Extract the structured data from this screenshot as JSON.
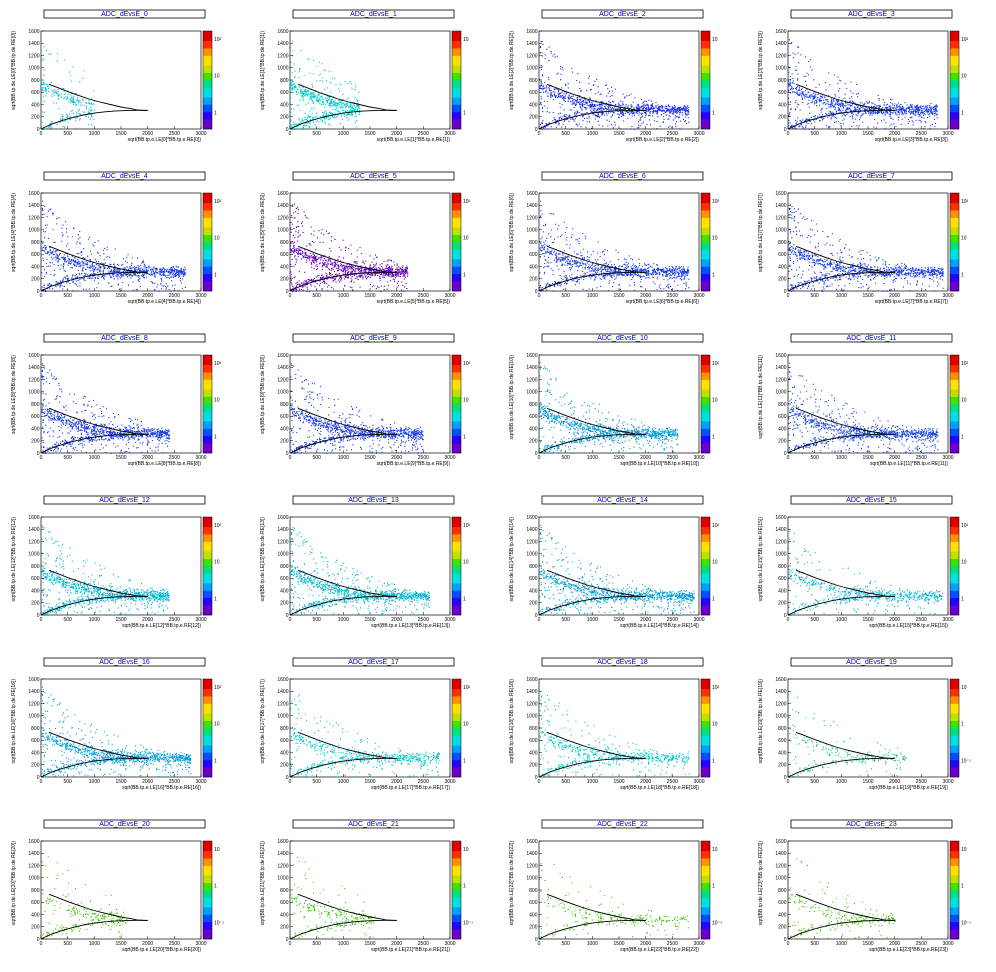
{
  "figure": {
    "rows": 6,
    "cols": 4
  },
  "colors": {
    "background": "#ffffff",
    "title_text": "#0000cc",
    "curve": "#000000",
    "palette": [
      "#6a00c8",
      "#2a00ff",
      "#0050ff",
      "#00a0ff",
      "#00e0e0",
      "#00e080",
      "#40e000",
      "#c0e000",
      "#ffe000",
      "#ff9000",
      "#ff3000",
      "#e00000"
    ]
  },
  "chart_data": [
    {
      "type": "heatmap",
      "title": "ADC_dEvsE_0",
      "xlabel": "sqrt(BB.tp.e.LE[0]*BB.tp.e.RE[0])",
      "ylabel": "sqrt(BB.tp.de.LE[0]*BB.tp.de.RE[0])",
      "xlim": [
        0,
        3000
      ],
      "ylim": [
        0,
        1600
      ],
      "xticks": [
        0,
        500,
        1000,
        1500,
        2000,
        2500,
        3000
      ],
      "yticks": [
        0,
        200,
        400,
        600,
        800,
        1000,
        1200,
        1400,
        1600
      ],
      "zscale": "log",
      "zticks": [
        "1",
        "10",
        "10²"
      ],
      "dominant_color": "#00c8e8",
      "density": "sparse",
      "extent_x": [
        0,
        1000
      ]
    },
    {
      "type": "heatmap",
      "title": "ADC_dEvsE_1",
      "xlabel": "sqrt(BB.tp.e.LE[1]*BB.tp.e.RE[1])",
      "ylabel": "sqrt(BB.tp.de.LE[1]*BB.tp.de.RE[1])",
      "xlim": [
        0,
        3000
      ],
      "ylim": [
        0,
        1600
      ],
      "xticks": [
        0,
        500,
        1000,
        1500,
        2000,
        2500,
        3000
      ],
      "yticks": [
        0,
        200,
        400,
        600,
        800,
        1000,
        1200,
        1400,
        1600
      ],
      "zscale": "log",
      "zticks": [
        "1",
        "10"
      ],
      "dominant_color": "#00e0e0",
      "density": "medium",
      "extent_x": [
        0,
        1300
      ]
    },
    {
      "type": "heatmap",
      "title": "ADC_dEvsE_2",
      "xlabel": "sqrt(BB.tp.e.LE[2]*BB.tp.e.RE[2])",
      "ylabel": "sqrt(BB.tp.de.LE[2]*BB.tp.de.RE[2])",
      "xlim": [
        0,
        3000
      ],
      "ylim": [
        0,
        1600
      ],
      "xticks": [
        0,
        500,
        1000,
        1500,
        2000,
        2500,
        3000
      ],
      "yticks": [
        0,
        200,
        400,
        600,
        800,
        1000,
        1200,
        1400,
        1600
      ],
      "zscale": "log",
      "zticks": [
        "1",
        "10"
      ],
      "dominant_color": "#1a30ff",
      "density": "dense",
      "extent_x": [
        0,
        2800
      ]
    },
    {
      "type": "heatmap",
      "title": "ADC_dEvsE_3",
      "xlabel": "sqrt(BB.tp.e.LE[3]*BB.tp.e.RE[3])",
      "ylabel": "sqrt(BB.tp.de.LE[3]*BB.tp.de.RE[3])",
      "xlim": [
        0,
        3000
      ],
      "ylim": [
        0,
        1600
      ],
      "xticks": [
        0,
        500,
        1000,
        1500,
        2000,
        2500,
        3000
      ],
      "yticks": [
        0,
        200,
        400,
        600,
        800,
        1000,
        1200,
        1400,
        1600
      ],
      "zscale": "log",
      "zticks": [
        "1",
        "10",
        "10²"
      ],
      "dominant_color": "#1a40ff",
      "density": "dense",
      "extent_x": [
        0,
        2800
      ]
    },
    {
      "type": "heatmap",
      "title": "ADC_dEvsE_4",
      "xlabel": "sqrt(BB.tp.e.LE[4]*BB.tp.e.RE[4])",
      "ylabel": "sqrt(BB.tp.de.LE[4]*BB.tp.de.RE[4])",
      "xlim": [
        0,
        3000
      ],
      "ylim": [
        0,
        1600
      ],
      "xticks": [
        0,
        500,
        1000,
        1500,
        2000,
        2500,
        3000
      ],
      "yticks": [
        0,
        200,
        400,
        600,
        800,
        1000,
        1200,
        1400,
        1600
      ],
      "zscale": "log",
      "zticks": [
        "1",
        "10",
        "10²"
      ],
      "dominant_color": "#1a40ff",
      "density": "dense",
      "extent_x": [
        0,
        2700
      ]
    },
    {
      "type": "heatmap",
      "title": "ADC_dEvsE_5",
      "xlabel": "sqrt(BB.tp.e.LE[5]*BB.tp.e.RE[5])",
      "ylabel": "sqrt(BB.tp.de.LE[5]*BB.tp.de.RE[5])",
      "xlim": [
        0,
        3000
      ],
      "ylim": [
        0,
        1600
      ],
      "xticks": [
        0,
        500,
        1000,
        1500,
        2000,
        2500,
        3000
      ],
      "yticks": [
        0,
        200,
        400,
        600,
        800,
        1000,
        1200,
        1400,
        1600
      ],
      "zscale": "log",
      "zticks": [
        "1",
        "10",
        "10²"
      ],
      "dominant_color": "#6a00d0",
      "density": "dense",
      "extent_x": [
        0,
        2200
      ]
    },
    {
      "type": "heatmap",
      "title": "ADC_dEvsE_6",
      "xlabel": "sqrt(BB.tp.e.LE[6]*BB.tp.e.RE[6])",
      "ylabel": "sqrt(BB.tp.de.LE[6]*BB.tp.de.RE[6])",
      "xlim": [
        0,
        3000
      ],
      "ylim": [
        0,
        1600
      ],
      "xticks": [
        0,
        500,
        1000,
        1500,
        2000,
        2500,
        3000
      ],
      "yticks": [
        0,
        200,
        400,
        600,
        800,
        1000,
        1200,
        1400,
        1600
      ],
      "zscale": "log",
      "zticks": [
        "1",
        "10",
        "10²"
      ],
      "dominant_color": "#1a40ff",
      "density": "dense",
      "extent_x": [
        0,
        2800
      ]
    },
    {
      "type": "heatmap",
      "title": "ADC_dEvsE_7",
      "xlabel": "sqrt(BB.tp.e.LE[7]*BB.tp.e.RE[7])",
      "ylabel": "sqrt(BB.tp.de.LE[7]*BB.tp.de.RE[7])",
      "xlim": [
        0,
        3000
      ],
      "ylim": [
        0,
        1600
      ],
      "xticks": [
        0,
        500,
        1000,
        1500,
        2000,
        2500,
        3000
      ],
      "yticks": [
        0,
        200,
        400,
        600,
        800,
        1000,
        1200,
        1400,
        1600
      ],
      "zscale": "log",
      "zticks": [
        "1",
        "10",
        "10²"
      ],
      "dominant_color": "#1a40ff",
      "density": "dense",
      "extent_x": [
        0,
        2900
      ]
    },
    {
      "type": "heatmap",
      "title": "ADC_dEvsE_8",
      "xlabel": "sqrt(BB.tp.e.LE[8]*BB.tp.e.RE[8])",
      "ylabel": "sqrt(BB.tp.de.LE[8]*BB.tp.de.RE[8])",
      "xlim": [
        0,
        3000
      ],
      "ylim": [
        0,
        1600
      ],
      "xticks": [
        0,
        500,
        1000,
        1500,
        2000,
        2500,
        3000
      ],
      "yticks": [
        0,
        200,
        400,
        600,
        800,
        1000,
        1200,
        1400,
        1600
      ],
      "zscale": "log",
      "zticks": [
        "1",
        "10",
        "10²"
      ],
      "dominant_color": "#1a40ff",
      "density": "dense",
      "extent_x": [
        0,
        2400
      ]
    },
    {
      "type": "heatmap",
      "title": "ADC_dEvsE_9",
      "xlabel": "sqrt(BB.tp.e.LE[9]*BB.tp.e.RE[9])",
      "ylabel": "sqrt(BB.tp.de.LE[9]*BB.tp.de.RE[9])",
      "xlim": [
        0,
        3000
      ],
      "ylim": [
        0,
        1600
      ],
      "xticks": [
        0,
        500,
        1000,
        1500,
        2000,
        2500,
        3000
      ],
      "yticks": [
        0,
        200,
        400,
        600,
        800,
        1000,
        1200,
        1400,
        1600
      ],
      "zscale": "log",
      "zticks": [
        "1",
        "10",
        "10²"
      ],
      "dominant_color": "#1a40ff",
      "density": "dense",
      "extent_x": [
        0,
        2500
      ]
    },
    {
      "type": "heatmap",
      "title": "ADC_dEvsE_10",
      "xlabel": "sqrt(BB.tp.e.LE[10]*BB.tp.e.RE[10])",
      "ylabel": "sqrt(BB.tp.de.LE[10]*BB.tp.de.RE[10])",
      "xlim": [
        0,
        3000
      ],
      "ylim": [
        0,
        1600
      ],
      "xticks": [
        0,
        500,
        1000,
        1500,
        2000,
        2500,
        3000
      ],
      "yticks": [
        0,
        200,
        400,
        600,
        800,
        1000,
        1200,
        1400,
        1600
      ],
      "zscale": "log",
      "zticks": [
        "1",
        "10",
        "10²"
      ],
      "dominant_color": "#00a8f0",
      "density": "dense",
      "extent_x": [
        0,
        2600
      ]
    },
    {
      "type": "heatmap",
      "title": "ADC_dEvsE_11",
      "xlabel": "sqrt(BB.tp.e.LE[11]*BB.tp.e.RE[11])",
      "ylabel": "sqrt(BB.tp.de.LE[11]*BB.tp.de.RE[11])",
      "xlim": [
        0,
        3000
      ],
      "ylim": [
        0,
        1600
      ],
      "xticks": [
        0,
        500,
        1000,
        1500,
        2000,
        2500,
        3000
      ],
      "yticks": [
        0,
        200,
        400,
        600,
        800,
        1000,
        1200,
        1400,
        1600
      ],
      "zscale": "log",
      "zticks": [
        "1",
        "10",
        "10²"
      ],
      "dominant_color": "#1a50ff",
      "density": "dense",
      "extent_x": [
        0,
        2800
      ]
    },
    {
      "type": "heatmap",
      "title": "ADC_dEvsE_12",
      "xlabel": "sqrt(BB.tp.e.LE[12]*BB.tp.e.RE[12])",
      "ylabel": "sqrt(BB.tp.de.LE[12]*BB.tp.de.RE[12])",
      "xlim": [
        0,
        3000
      ],
      "ylim": [
        0,
        1600
      ],
      "xticks": [
        0,
        500,
        1000,
        1500,
        2000,
        2500,
        3000
      ],
      "yticks": [
        0,
        200,
        400,
        600,
        800,
        1000,
        1200,
        1400,
        1600
      ],
      "zscale": "log",
      "zticks": [
        "1",
        "10",
        "10²"
      ],
      "dominant_color": "#00c8e8",
      "density": "dense",
      "extent_x": [
        0,
        2400
      ]
    },
    {
      "type": "heatmap",
      "title": "ADC_dEvsE_13",
      "xlabel": "sqrt(BB.tp.e.LE[13]*BB.tp.e.RE[13])",
      "ylabel": "sqrt(BB.tp.de.LE[13]*BB.tp.de.RE[13])",
      "xlim": [
        0,
        3000
      ],
      "ylim": [
        0,
        1600
      ],
      "xticks": [
        0,
        500,
        1000,
        1500,
        2000,
        2500,
        3000
      ],
      "yticks": [
        0,
        200,
        400,
        600,
        800,
        1000,
        1200,
        1400,
        1600
      ],
      "zscale": "log",
      "zticks": [
        "1",
        "10",
        "10²"
      ],
      "dominant_color": "#00c8e8",
      "density": "dense",
      "extent_x": [
        0,
        2600
      ]
    },
    {
      "type": "heatmap",
      "title": "ADC_dEvsE_14",
      "xlabel": "sqrt(BB.tp.e.LE[14]*BB.tp.e.RE[14])",
      "ylabel": "sqrt(BB.tp.de.LE[14]*BB.tp.de.RE[14])",
      "xlim": [
        0,
        3000
      ],
      "ylim": [
        0,
        1600
      ],
      "xticks": [
        0,
        500,
        1000,
        1500,
        2000,
        2500,
        3000
      ],
      "yticks": [
        0,
        200,
        400,
        600,
        800,
        1000,
        1200,
        1400,
        1600
      ],
      "zscale": "log",
      "zticks": [
        "1",
        "10",
        "10²"
      ],
      "dominant_color": "#00b0f0",
      "density": "dense",
      "extent_x": [
        0,
        2900
      ]
    },
    {
      "type": "heatmap",
      "title": "ADC_dEvsE_15",
      "xlabel": "sqrt(BB.tp.e.LE[15]*BB.tp.e.RE[15])",
      "ylabel": "sqrt(BB.tp.de.LE[15]*BB.tp.de.RE[15])",
      "xlim": [
        0,
        3000
      ],
      "ylim": [
        0,
        1600
      ],
      "xticks": [
        0,
        500,
        1000,
        1500,
        2000,
        2500,
        3000
      ],
      "yticks": [
        0,
        200,
        400,
        600,
        800,
        1000,
        1200,
        1400,
        1600
      ],
      "zscale": "log",
      "zticks": [
        "1",
        "10",
        "10²"
      ],
      "dominant_color": "#00c8e8",
      "density": "medium",
      "extent_x": [
        0,
        2900
      ]
    },
    {
      "type": "heatmap",
      "title": "ADC_dEvsE_16",
      "xlabel": "sqrt(BB.tp.e.LE[16]*BB.tp.e.RE[16])",
      "ylabel": "sqrt(BB.tp.de.LE[16]*BB.tp.de.RE[16])",
      "xlim": [
        0,
        3000
      ],
      "ylim": [
        0,
        1600
      ],
      "xticks": [
        0,
        500,
        1000,
        1500,
        2000,
        2500,
        3000
      ],
      "yticks": [
        0,
        200,
        400,
        600,
        800,
        1000,
        1200,
        1400,
        1600
      ],
      "zscale": "log",
      "zticks": [
        "1",
        "10",
        "10²"
      ],
      "dominant_color": "#00b0f0",
      "density": "dense",
      "extent_x": [
        0,
        2800
      ]
    },
    {
      "type": "heatmap",
      "title": "ADC_dEvsE_17",
      "xlabel": "sqrt(BB.tp.e.LE[17]*BB.tp.e.RE[17])",
      "ylabel": "sqrt(BB.tp.de.LE[17]*BB.tp.de.RE[17])",
      "xlim": [
        0,
        3000
      ],
      "ylim": [
        0,
        1600
      ],
      "xticks": [
        0,
        500,
        1000,
        1500,
        2000,
        2500,
        3000
      ],
      "yticks": [
        0,
        200,
        400,
        600,
        800,
        1000,
        1200,
        1400,
        1600
      ],
      "zscale": "log",
      "zticks": [
        "1",
        "10",
        "10²"
      ],
      "dominant_color": "#00e0e0",
      "density": "medium",
      "extent_x": [
        0,
        2800
      ]
    },
    {
      "type": "heatmap",
      "title": "ADC_dEvsE_18",
      "xlabel": "sqrt(BB.tp.e.LE[18]*BB.tp.e.RE[18])",
      "ylabel": "sqrt(BB.tp.de.LE[18]*BB.tp.de.RE[18])",
      "xlim": [
        0,
        3000
      ],
      "ylim": [
        0,
        1600
      ],
      "xticks": [
        0,
        500,
        1000,
        1500,
        2000,
        2500,
        3000
      ],
      "yticks": [
        0,
        200,
        400,
        600,
        800,
        1000,
        1200,
        1400,
        1600
      ],
      "zscale": "log",
      "zticks": [
        "1",
        "10",
        "10²"
      ],
      "dominant_color": "#00e0e0",
      "density": "medium",
      "extent_x": [
        0,
        2800
      ]
    },
    {
      "type": "heatmap",
      "title": "ADC_dEvsE_19",
      "xlabel": "sqrt(BB.tp.e.LE[19]*BB.tp.e.RE[19])",
      "ylabel": "sqrt(BB.tp.de.LE[19]*BB.tp.de.RE[19])",
      "xlim": [
        0,
        3000
      ],
      "ylim": [
        0,
        1600
      ],
      "xticks": [
        0,
        500,
        1000,
        1500,
        2000,
        2500,
        3000
      ],
      "yticks": [
        0,
        200,
        400,
        600,
        800,
        1000,
        1200,
        1400,
        1600
      ],
      "zscale": "log",
      "zticks": [
        "10⁻¹",
        "1",
        "10"
      ],
      "dominant_color": "#20d8a0",
      "density": "sparse",
      "extent_x": [
        0,
        2200
      ]
    },
    {
      "type": "heatmap",
      "title": "ADC_dEvsE_20",
      "xlabel": "sqrt(BB.tp.e.LE[20]*BB.tp.e.RE[20])",
      "ylabel": "sqrt(BB.tp.de.LE[20]*BB.tp.de.RE[20])",
      "xlim": [
        0,
        3000
      ],
      "ylim": [
        0,
        1600
      ],
      "xticks": [
        0,
        500,
        1000,
        1500,
        2000,
        2500,
        3000
      ],
      "yticks": [
        0,
        200,
        400,
        600,
        800,
        1000,
        1200,
        1400,
        1600
      ],
      "zscale": "log",
      "zticks": [
        "10⁻¹",
        "1",
        "10"
      ],
      "dominant_color": "#40e000",
      "density": "sparse",
      "extent_x": [
        0,
        1600
      ]
    },
    {
      "type": "heatmap",
      "title": "ADC_dEvsE_21",
      "xlabel": "sqrt(BB.tp.e.LE[21]*BB.tp.e.RE[21])",
      "ylabel": "sqrt(BB.tp.de.LE[21]*BB.tp.de.RE[21])",
      "xlim": [
        0,
        3000
      ],
      "ylim": [
        0,
        1600
      ],
      "xticks": [
        0,
        500,
        1000,
        1500,
        2000,
        2500,
        3000
      ],
      "yticks": [
        0,
        200,
        400,
        600,
        800,
        1000,
        1200,
        1400,
        1600
      ],
      "zscale": "log",
      "zticks": [
        "10⁻¹",
        "1",
        "10"
      ],
      "dominant_color": "#40e000",
      "density": "sparse",
      "extent_x": [
        0,
        1600
      ]
    },
    {
      "type": "heatmap",
      "title": "ADC_dEvsE_22",
      "xlabel": "sqrt(BB.tp.e.LE[22]*BB.tp.e.RE[22])",
      "ylabel": "sqrt(BB.tp.de.LE[22]*BB.tp.de.RE[22])",
      "xlim": [
        0,
        3000
      ],
      "ylim": [
        0,
        1600
      ],
      "xticks": [
        0,
        500,
        1000,
        1500,
        2000,
        2500,
        3000
      ],
      "yticks": [
        0,
        200,
        400,
        600,
        800,
        1000,
        1200,
        1400,
        1600
      ],
      "zscale": "log",
      "zticks": [
        "10⁻¹",
        "1",
        "10"
      ],
      "dominant_color": "#40e000",
      "density": "sparse",
      "extent_x": [
        0,
        2800
      ]
    },
    {
      "type": "heatmap",
      "title": "ADC_dEvsE_23",
      "xlabel": "sqrt(BB.tp.e.LE[23]*BB.tp.e.RE[23])",
      "ylabel": "sqrt(BB.tp.de.LE[23]*BB.tp.de.RE[23])",
      "xlim": [
        0,
        3000
      ],
      "ylim": [
        0,
        1600
      ],
      "xticks": [
        0,
        500,
        1000,
        1500,
        2000,
        2500,
        3000
      ],
      "yticks": [
        0,
        200,
        400,
        600,
        800,
        1000,
        1200,
        1400,
        1600
      ],
      "zscale": "log",
      "zticks": [
        "10⁻¹",
        "1",
        "10"
      ],
      "dominant_color": "#40e000",
      "density": "sparse",
      "extent_x": [
        0,
        2000
      ]
    }
  ],
  "cut_curves": {
    "upper": {
      "x": [
        150,
        300,
        500,
        700,
        900,
        1100,
        1300,
        1500,
        1700,
        1800,
        2000
      ],
      "y": [
        730,
        680,
        610,
        550,
        490,
        440,
        400,
        360,
        330,
        310,
        300
      ]
    },
    "lower": {
      "x": [
        0,
        100,
        200,
        400,
        600,
        800,
        1000,
        1200,
        1400,
        1600,
        1800,
        2000
      ],
      "y": [
        0,
        40,
        80,
        140,
        190,
        230,
        260,
        280,
        295,
        300,
        305,
        305
      ]
    }
  }
}
